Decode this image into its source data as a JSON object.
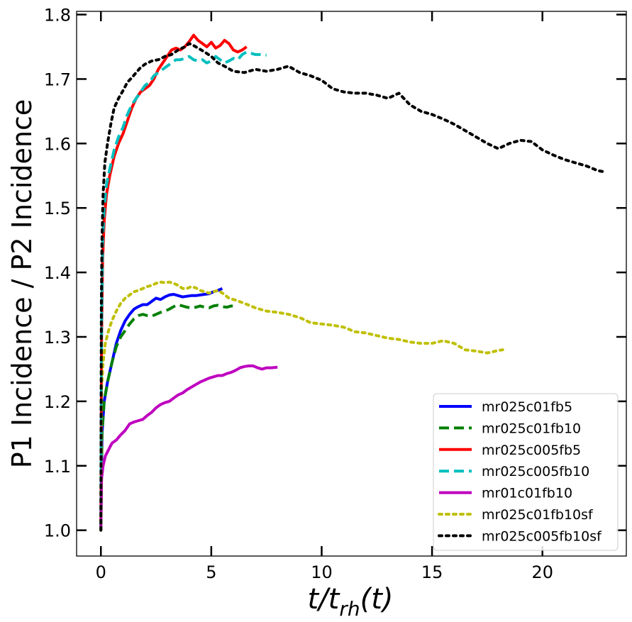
{
  "chart_data": {
    "type": "line",
    "title": "",
    "xlabel_main": "t/t",
    "xlabel_sub": "rh",
    "xlabel_tail": "(t)",
    "ylabel": "P1 Incidence / P2 Incidence",
    "xlim": [
      -1.1,
      23.8
    ],
    "ylim": [
      0.96,
      1.805
    ],
    "xticks": [
      0,
      5,
      10,
      15,
      20
    ],
    "xtick_labels": [
      "0",
      "5",
      "10",
      "15",
      "20"
    ],
    "yticks": [
      1.0,
      1.1,
      1.2,
      1.3,
      1.4,
      1.5,
      1.6,
      1.7,
      1.8
    ],
    "ytick_labels": [
      "1.0",
      "1.1",
      "1.2",
      "1.3",
      "1.4",
      "1.5",
      "1.6",
      "1.7",
      "1.8"
    ],
    "grid": false,
    "legend_position": "lower-right",
    "series": [
      {
        "name": "mr025c01fb5",
        "color": "#0000ff",
        "style": "solid",
        "x": [
          0,
          0.05,
          0.15,
          0.3,
          0.5,
          0.7,
          0.9,
          1.1,
          1.3,
          1.5,
          1.7,
          1.9,
          2.1,
          2.3,
          2.5,
          2.7,
          2.9,
          3.1,
          3.3,
          3.5,
          3.7,
          3.9,
          4.1,
          4.3,
          4.5,
          4.7,
          4.9,
          5.1,
          5.3,
          5.5
        ],
        "y": [
          1.0,
          1.15,
          1.2,
          1.23,
          1.26,
          1.29,
          1.31,
          1.325,
          1.335,
          1.343,
          1.347,
          1.35,
          1.35,
          1.355,
          1.36,
          1.358,
          1.362,
          1.365,
          1.366,
          1.364,
          1.362,
          1.363,
          1.364,
          1.364,
          1.365,
          1.366,
          1.367,
          1.37,
          1.372,
          1.375
        ]
      },
      {
        "name": "mr025c01fb10",
        "color": "#008000",
        "style": "dashed",
        "x": [
          0,
          0.05,
          0.15,
          0.3,
          0.5,
          0.7,
          0.9,
          1.1,
          1.3,
          1.5,
          1.7,
          1.9,
          2.1,
          2.3,
          2.5,
          2.7,
          2.9,
          3.1,
          3.3,
          3.5,
          3.7,
          3.9,
          4.1,
          4.3,
          4.5,
          4.7,
          4.9,
          5.1,
          5.3,
          5.5,
          5.7,
          5.9,
          6.1
        ],
        "y": [
          1.0,
          1.15,
          1.2,
          1.23,
          1.26,
          1.285,
          1.3,
          1.31,
          1.32,
          1.328,
          1.333,
          1.335,
          1.333,
          1.332,
          1.335,
          1.338,
          1.34,
          1.343,
          1.347,
          1.35,
          1.348,
          1.346,
          1.345,
          1.346,
          1.348,
          1.346,
          1.345,
          1.348,
          1.349,
          1.347,
          1.346,
          1.348,
          1.347
        ]
      },
      {
        "name": "mr025c005fb5",
        "color": "#ff0000",
        "style": "solid",
        "x": [
          0,
          0.03,
          0.08,
          0.15,
          0.25,
          0.4,
          0.6,
          0.8,
          1.0,
          1.2,
          1.4,
          1.6,
          1.8,
          2.0,
          2.2,
          2.4,
          2.6,
          2.8,
          3.0,
          3.2,
          3.4,
          3.6,
          3.8,
          4.0,
          4.2,
          4.4,
          4.6,
          4.8,
          5.0,
          5.2,
          5.4,
          5.6,
          5.8,
          6.0,
          6.2,
          6.4,
          6.6
        ],
        "y": [
          1.0,
          1.3,
          1.42,
          1.48,
          1.52,
          1.55,
          1.58,
          1.6,
          1.615,
          1.635,
          1.655,
          1.67,
          1.68,
          1.685,
          1.69,
          1.7,
          1.715,
          1.725,
          1.735,
          1.745,
          1.748,
          1.745,
          1.75,
          1.758,
          1.768,
          1.76,
          1.755,
          1.75,
          1.757,
          1.748,
          1.752,
          1.76,
          1.755,
          1.745,
          1.742,
          1.745,
          1.75
        ]
      },
      {
        "name": "mr025c005fb10",
        "color": "#00bfbf",
        "style": "dashed",
        "x": [
          0,
          0.03,
          0.08,
          0.15,
          0.25,
          0.4,
          0.6,
          0.8,
          1.0,
          1.2,
          1.4,
          1.6,
          1.8,
          2.0,
          2.2,
          2.4,
          2.6,
          2.8,
          3.0,
          3.2,
          3.4,
          3.6,
          3.8,
          4.0,
          4.2,
          4.4,
          4.6,
          4.8,
          5.0,
          5.2,
          5.4,
          5.6,
          5.8,
          6.0,
          6.2,
          6.4,
          6.6,
          6.8,
          7.0,
          7.2,
          7.5
        ],
        "y": [
          1.0,
          1.32,
          1.45,
          1.5,
          1.535,
          1.56,
          1.59,
          1.61,
          1.625,
          1.645,
          1.66,
          1.67,
          1.68,
          1.69,
          1.695,
          1.705,
          1.71,
          1.715,
          1.72,
          1.725,
          1.73,
          1.73,
          1.732,
          1.735,
          1.73,
          1.728,
          1.73,
          1.725,
          1.728,
          1.735,
          1.73,
          1.725,
          1.728,
          1.732,
          1.73,
          1.738,
          1.742,
          1.74,
          1.738,
          1.738,
          1.737
        ]
      },
      {
        "name": "mr01c01fb10",
        "color": "#bf00bf",
        "style": "solid",
        "x": [
          0,
          0.03,
          0.1,
          0.2,
          0.35,
          0.5,
          0.7,
          0.9,
          1.1,
          1.3,
          1.5,
          1.7,
          1.9,
          2.1,
          2.3,
          2.5,
          2.7,
          2.9,
          3.1,
          3.3,
          3.5,
          3.7,
          3.9,
          4.1,
          4.3,
          4.5,
          4.7,
          4.9,
          5.1,
          5.3,
          5.5,
          5.7,
          5.9,
          6.1,
          6.3,
          6.5,
          6.7,
          6.9,
          7.1,
          7.3,
          7.5,
          7.7,
          8.0
        ],
        "y": [
          1.0,
          1.08,
          1.1,
          1.115,
          1.125,
          1.135,
          1.14,
          1.148,
          1.155,
          1.165,
          1.168,
          1.17,
          1.172,
          1.178,
          1.183,
          1.19,
          1.195,
          1.198,
          1.2,
          1.205,
          1.21,
          1.213,
          1.218,
          1.222,
          1.226,
          1.23,
          1.233,
          1.236,
          1.238,
          1.24,
          1.24,
          1.243,
          1.245,
          1.248,
          1.252,
          1.254,
          1.255,
          1.255,
          1.252,
          1.25,
          1.252,
          1.252,
          1.253
        ]
      },
      {
        "name": "mr025c01fb10sf",
        "color": "#bfbf00",
        "style": "dotted",
        "x": [
          0,
          0.03,
          0.1,
          0.2,
          0.35,
          0.5,
          0.7,
          0.9,
          1.1,
          1.3,
          1.5,
          1.7,
          1.9,
          2.1,
          2.3,
          2.5,
          2.7,
          2.9,
          3.1,
          3.3,
          3.5,
          3.7,
          3.9,
          4.1,
          4.3,
          4.5,
          4.7,
          4.9,
          5.1,
          5.3,
          5.5,
          5.8,
          6.1,
          6.5,
          7.0,
          7.5,
          8.0,
          8.5,
          9.0,
          9.5,
          10.0,
          10.5,
          11.0,
          11.5,
          12.0,
          12.5,
          13.0,
          13.5,
          14.0,
          14.5,
          15.0,
          15.5,
          16.0,
          16.5,
          17.0,
          17.5,
          18.0,
          18.2
        ],
        "y": [
          1.0,
          1.22,
          1.26,
          1.29,
          1.31,
          1.325,
          1.34,
          1.352,
          1.36,
          1.365,
          1.37,
          1.372,
          1.375,
          1.378,
          1.38,
          1.383,
          1.385,
          1.384,
          1.385,
          1.383,
          1.38,
          1.375,
          1.375,
          1.378,
          1.376,
          1.372,
          1.37,
          1.368,
          1.37,
          1.372,
          1.368,
          1.36,
          1.357,
          1.352,
          1.345,
          1.34,
          1.338,
          1.335,
          1.33,
          1.322,
          1.32,
          1.318,
          1.315,
          1.308,
          1.306,
          1.302,
          1.298,
          1.296,
          1.292,
          1.29,
          1.29,
          1.294,
          1.29,
          1.28,
          1.278,
          1.275,
          1.279,
          1.28
        ]
      },
      {
        "name": "mr025c005fb10sf",
        "color": "#000000",
        "style": "dotted",
        "x": [
          0,
          0.02,
          0.05,
          0.1,
          0.18,
          0.3,
          0.45,
          0.6,
          0.8,
          1.0,
          1.2,
          1.4,
          1.6,
          1.8,
          2.0,
          2.3,
          2.6,
          2.9,
          3.2,
          3.5,
          3.8,
          4.0,
          4.2,
          4.4,
          4.7,
          5.0,
          5.3,
          5.6,
          6.0,
          6.5,
          7.0,
          7.5,
          8.0,
          8.5,
          9.0,
          9.5,
          10.0,
          10.5,
          11.0,
          11.5,
          12.0,
          12.5,
          13.0,
          13.5,
          14.0,
          14.5,
          15.0,
          15.5,
          16.0,
          16.5,
          17.0,
          17.5,
          18.0,
          18.5,
          19.0,
          19.5,
          20.0,
          20.5,
          21.0,
          21.5,
          22.0,
          22.5,
          22.8
        ],
        "y": [
          1.0,
          1.35,
          1.45,
          1.52,
          1.57,
          1.6,
          1.63,
          1.655,
          1.67,
          1.682,
          1.695,
          1.702,
          1.71,
          1.718,
          1.723,
          1.728,
          1.73,
          1.735,
          1.738,
          1.745,
          1.75,
          1.755,
          1.752,
          1.748,
          1.742,
          1.735,
          1.725,
          1.72,
          1.712,
          1.71,
          1.715,
          1.712,
          1.715,
          1.72,
          1.71,
          1.705,
          1.698,
          1.685,
          1.68,
          1.678,
          1.678,
          1.675,
          1.67,
          1.678,
          1.66,
          1.65,
          1.645,
          1.638,
          1.63,
          1.62,
          1.61,
          1.6,
          1.592,
          1.6,
          1.605,
          1.603,
          1.59,
          1.582,
          1.575,
          1.57,
          1.565,
          1.558,
          1.556
        ]
      }
    ]
  }
}
